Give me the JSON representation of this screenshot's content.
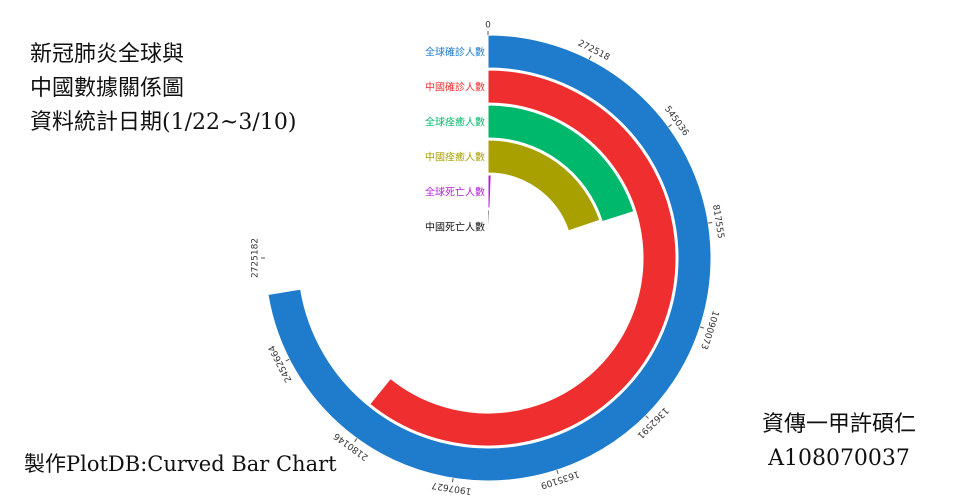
{
  "title": {
    "lines": [
      "新冠肺炎全球與",
      "中國數據關係圖",
      "資料統計日期(1/22~3/10)"
    ]
  },
  "credit": "製作PlotDB:Curved Bar Chart",
  "author": {
    "name": "資傳一甲許碩仁",
    "id": "A108070037"
  },
  "chart_data": {
    "type": "bar",
    "layout": "radial",
    "domain": [
      0,
      2725182
    ],
    "ticks": [
      0,
      272518,
      545036,
      817555,
      1090073,
      1362591,
      1635109,
      1907627,
      2180146,
      2452664,
      2725182
    ],
    "series": [
      {
        "name": "全球確診人數",
        "value": 2630000,
        "color": "#1f7bcb"
      },
      {
        "name": "中國確診人數",
        "value": 2210000,
        "color": "#ef2f2f"
      },
      {
        "name": "全球痊癒人數",
        "value": 730000,
        "color": "#00b86b"
      },
      {
        "name": "中國痊癒人數",
        "value": 720000,
        "color": "#a8a000"
      },
      {
        "name": "全球死亡人數",
        "value": 22000,
        "color": "#b51fd8"
      },
      {
        "name": "中國死亡人數",
        "value": 18000,
        "color": "#111111"
      }
    ]
  }
}
